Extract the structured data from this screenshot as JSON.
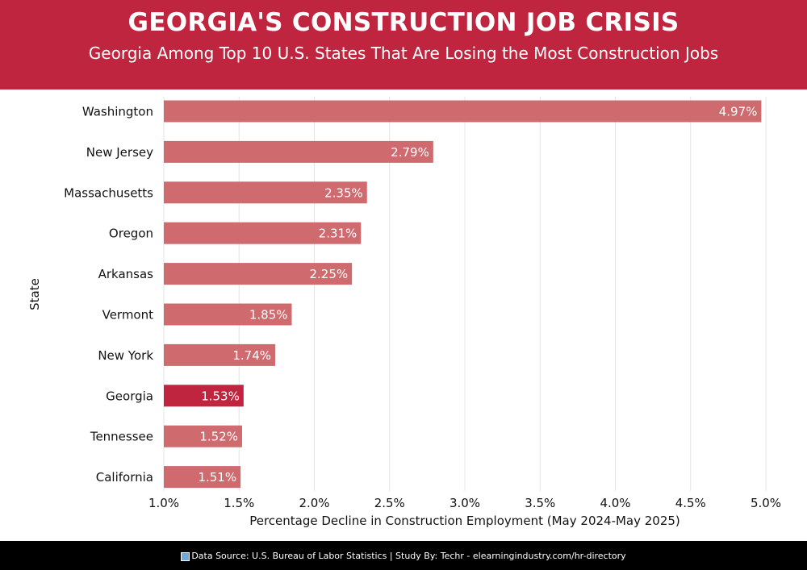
{
  "header": {
    "title": "GEORGIA'S CONSTRUCTION JOB CRISIS",
    "subtitle": "Georgia Among Top 10 U.S. States That Are Losing the Most Construction Jobs"
  },
  "footer": {
    "icon": "bar-chart-icon",
    "text": "Data Source: U.S. Bureau of Labor Statistics | Study By: Techr - elearningindustry.com/hr-directory"
  },
  "chart_data": {
    "type": "bar",
    "orientation": "horizontal",
    "categories": [
      "Washington",
      "New Jersey",
      "Massachusetts",
      "Oregon",
      "Arkansas",
      "Vermont",
      "New York",
      "Georgia",
      "Tennessee",
      "California"
    ],
    "values": [
      4.97,
      2.79,
      2.35,
      2.31,
      2.25,
      1.85,
      1.74,
      1.53,
      1.52,
      1.51
    ],
    "value_labels": [
      "4.97%",
      "2.79%",
      "2.35%",
      "2.31%",
      "2.25%",
      "1.85%",
      "1.74%",
      "1.53%",
      "1.52%",
      "1.51%"
    ],
    "highlight": "Georgia",
    "xlabel": "Percentage Decline in Construction Employment (May 2024-May 2025)",
    "ylabel": "State",
    "xlim": [
      1.0,
      5.0
    ],
    "xticks": [
      1.0,
      1.5,
      2.0,
      2.5,
      3.0,
      3.5,
      4.0,
      4.5,
      5.0
    ],
    "xtick_labels": [
      "1.0%",
      "1.5%",
      "2.0%",
      "2.5%",
      "3.0%",
      "3.5%",
      "4.0%",
      "4.5%",
      "5.0%"
    ],
    "grid": true,
    "colors": {
      "bar": "#cf6b6f",
      "highlight": "#c0253f",
      "grid": "#e4e4e4"
    }
  }
}
